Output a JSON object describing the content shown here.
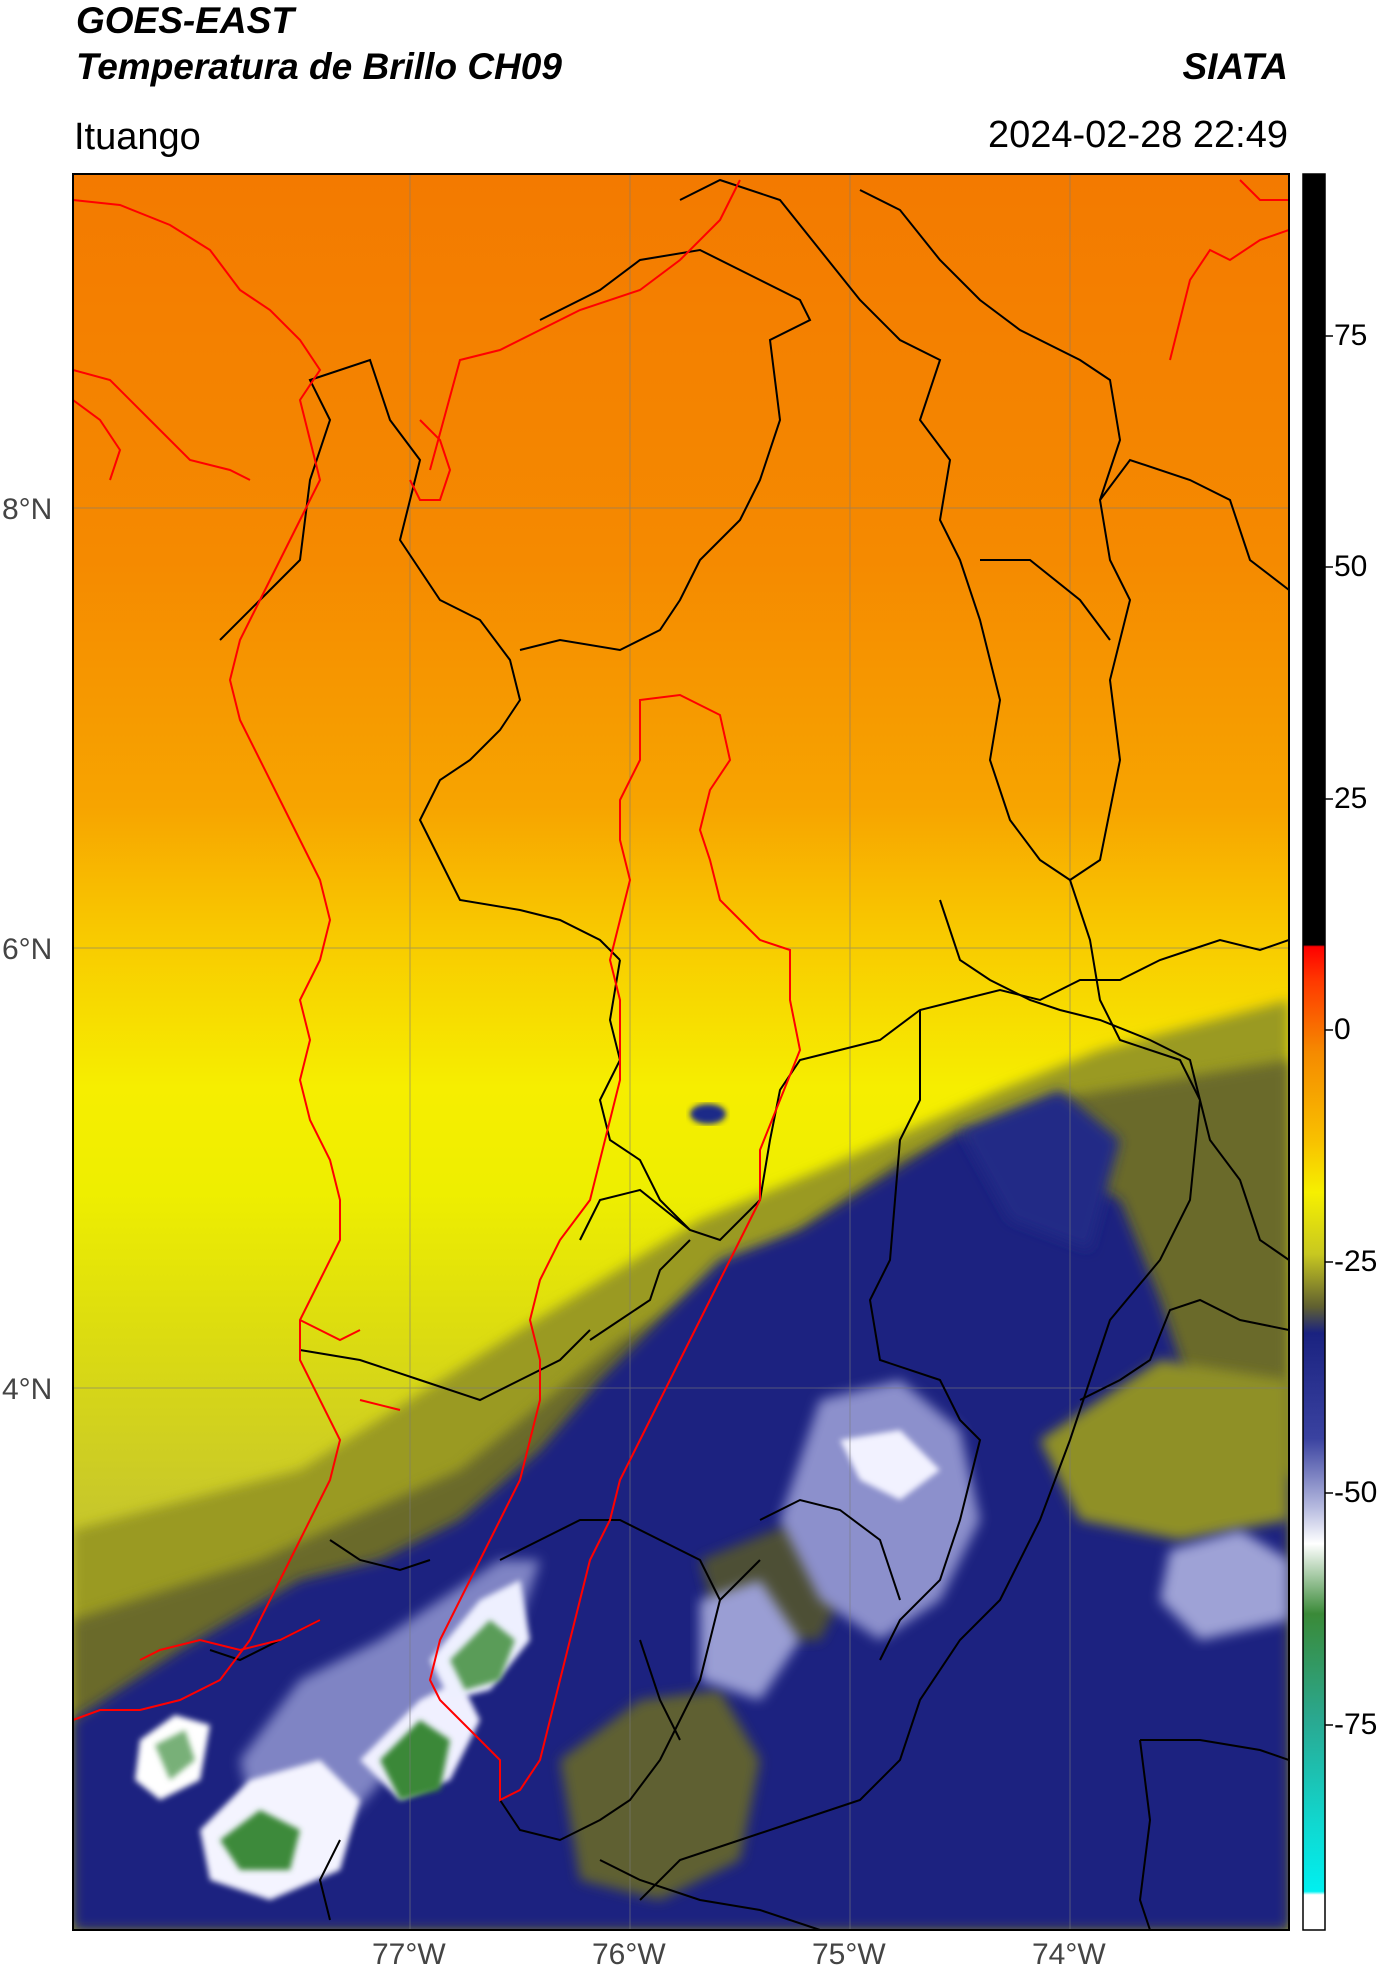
{
  "header": {
    "title_line1": "GOES-EAST",
    "title_line2": "Temperatura de Brillo CH09",
    "org": "SIATA",
    "location": "Ituango",
    "datetime": "2024-02-28 22:49"
  },
  "map": {
    "lat_labels": [
      "8°N",
      "6°N",
      "4°N"
    ],
    "lon_labels": [
      "77°W",
      "76°W",
      "75°W",
      "74°W"
    ],
    "colors": {
      "orange": "#f59a00",
      "dark_orange": "#f08500",
      "yellow": "#f6f000",
      "olive": "#9a9a20",
      "dark_olive": "#5e6030",
      "navy": "#101a7a",
      "light_blue": "#a8acd8",
      "white": "#ffffff",
      "green": "#3a8a38",
      "boundary_black": "#000000",
      "boundary_red": "#ff0000"
    }
  },
  "colorbar": {
    "ticks": [
      "75",
      "50",
      "25",
      "0",
      "-25",
      "-50",
      "-75"
    ]
  }
}
